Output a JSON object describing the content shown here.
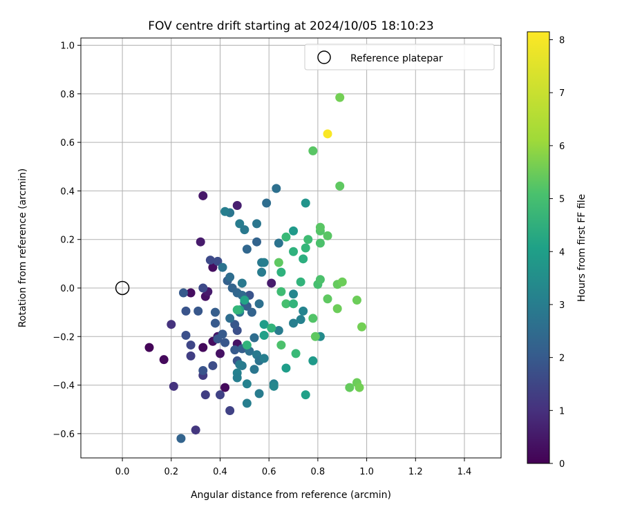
{
  "chart_data": {
    "type": "scatter",
    "title": "FOV centre drift starting at 2024/10/05 18:10:23",
    "xlabel": "Angular distance from reference (arcmin)",
    "ylabel": "Rotation from reference (arcmin)",
    "xlim": [
      -0.17,
      1.55
    ],
    "ylim": [
      -0.7,
      1.03
    ],
    "xticks": [
      0.0,
      0.2,
      0.4,
      0.6,
      0.8,
      1.0,
      1.2,
      1.4
    ],
    "xtick_labels": [
      "0.0",
      "0.2",
      "0.4",
      "0.6",
      "0.8",
      "1.0",
      "1.2",
      "1.4"
    ],
    "yticks": [
      -0.6,
      -0.4,
      -0.2,
      0.0,
      0.2,
      0.4,
      0.6,
      0.8,
      1.0
    ],
    "ytick_labels": [
      "−0.6",
      "−0.4",
      "−0.2",
      "0.0",
      "0.2",
      "0.4",
      "0.6",
      "0.8",
      "1.0"
    ],
    "grid": true,
    "legend": {
      "position": "top-right",
      "entries": [
        "Reference platepar"
      ]
    },
    "reference_point": {
      "x": 0.0,
      "y": 0.0
    },
    "colorbar": {
      "label": "Hours from first FF file",
      "colormap": "viridis",
      "min": 0,
      "max": 8.15,
      "ticks": [
        0,
        1,
        2,
        3,
        4,
        5,
        6,
        7,
        8
      ],
      "tick_labels": [
        "0",
        "1",
        "2",
        "3",
        "4",
        "5",
        "6",
        "7",
        "8"
      ]
    },
    "series": [
      {
        "color_value_label": "Hours from first FF file",
        "points": [
          {
            "x": 0.11,
            "y": -0.245,
            "c": 0.1
          },
          {
            "x": 0.17,
            "y": -0.295,
            "c": 0.2
          },
          {
            "x": 0.28,
            "y": -0.02,
            "c": 0.3
          },
          {
            "x": 0.33,
            "y": -0.245,
            "c": 0.2
          },
          {
            "x": 0.34,
            "y": -0.035,
            "c": 0.4
          },
          {
            "x": 0.35,
            "y": -0.015,
            "c": 0.6
          },
          {
            "x": 0.33,
            "y": 0.38,
            "c": 0.5
          },
          {
            "x": 0.32,
            "y": 0.19,
            "c": 0.6
          },
          {
            "x": 0.37,
            "y": 0.085,
            "c": 0.3
          },
          {
            "x": 0.37,
            "y": -0.22,
            "c": 0.3
          },
          {
            "x": 0.39,
            "y": -0.2,
            "c": 0.5
          },
          {
            "x": 0.4,
            "y": -0.27,
            "c": 0.4
          },
          {
            "x": 0.42,
            "y": -0.41,
            "c": 0.2
          },
          {
            "x": 0.47,
            "y": 0.34,
            "c": 0.7
          },
          {
            "x": 0.47,
            "y": -0.23,
            "c": 0.4
          },
          {
            "x": 0.61,
            "y": 0.02,
            "c": 0.6
          },
          {
            "x": 0.2,
            "y": -0.15,
            "c": 1.2
          },
          {
            "x": 0.21,
            "y": -0.405,
            "c": 1.2
          },
          {
            "x": 0.3,
            "y": -0.585,
            "c": 1.3
          },
          {
            "x": 0.28,
            "y": -0.28,
            "c": 1.5
          },
          {
            "x": 0.28,
            "y": -0.235,
            "c": 1.7
          },
          {
            "x": 0.33,
            "y": -0.36,
            "c": 1.4
          },
          {
            "x": 0.34,
            "y": -0.44,
            "c": 1.5
          },
          {
            "x": 0.4,
            "y": -0.44,
            "c": 1.6
          },
          {
            "x": 0.44,
            "y": -0.505,
            "c": 1.6
          },
          {
            "x": 0.37,
            "y": -0.32,
            "c": 1.9
          },
          {
            "x": 0.33,
            "y": -0.34,
            "c": 2.1
          },
          {
            "x": 0.36,
            "y": 0.115,
            "c": 1.8
          },
          {
            "x": 0.39,
            "y": 0.11,
            "c": 1.9
          },
          {
            "x": 0.33,
            "y": 0.0,
            "c": 1.8
          },
          {
            "x": 0.26,
            "y": -0.095,
            "c": 2.1
          },
          {
            "x": 0.26,
            "y": -0.195,
            "c": 2.0
          },
          {
            "x": 0.31,
            "y": -0.095,
            "c": 2.2
          },
          {
            "x": 0.25,
            "y": -0.02,
            "c": 2.3
          },
          {
            "x": 0.24,
            "y": -0.62,
            "c": 2.6
          },
          {
            "x": 0.38,
            "y": -0.145,
            "c": 2.3
          },
          {
            "x": 0.38,
            "y": -0.1,
            "c": 2.4
          },
          {
            "x": 0.39,
            "y": -0.21,
            "c": 2.2
          },
          {
            "x": 0.41,
            "y": -0.19,
            "c": 2.3
          },
          {
            "x": 0.42,
            "y": -0.225,
            "c": 2.2
          },
          {
            "x": 0.47,
            "y": -0.175,
            "c": 2.0
          },
          {
            "x": 0.46,
            "y": -0.15,
            "c": 2.2
          },
          {
            "x": 0.46,
            "y": -0.255,
            "c": 2.3
          },
          {
            "x": 0.47,
            "y": -0.3,
            "c": 2.1
          },
          {
            "x": 0.49,
            "y": -0.25,
            "c": 2.4
          },
          {
            "x": 0.5,
            "y": -0.06,
            "c": 2.2
          },
          {
            "x": 0.51,
            "y": -0.075,
            "c": 2.4
          },
          {
            "x": 0.52,
            "y": -0.03,
            "c": 2.1
          },
          {
            "x": 0.43,
            "y": 0.03,
            "c": 2.5
          },
          {
            "x": 0.45,
            "y": 0.0,
            "c": 2.6
          },
          {
            "x": 0.47,
            "y": -0.02,
            "c": 2.7
          },
          {
            "x": 0.49,
            "y": -0.03,
            "c": 2.8
          },
          {
            "x": 0.53,
            "y": -0.1,
            "c": 2.6
          },
          {
            "x": 0.44,
            "y": -0.125,
            "c": 2.9
          },
          {
            "x": 0.48,
            "y": -0.1,
            "c": 3.0
          },
          {
            "x": 0.51,
            "y": 0.16,
            "c": 2.7
          },
          {
            "x": 0.55,
            "y": 0.19,
            "c": 2.6
          },
          {
            "x": 0.44,
            "y": 0.045,
            "c": 2.9
          },
          {
            "x": 0.41,
            "y": 0.085,
            "c": 3.1
          },
          {
            "x": 0.49,
            "y": 0.02,
            "c": 3.3
          },
          {
            "x": 0.44,
            "y": 0.31,
            "c": 3.2
          },
          {
            "x": 0.42,
            "y": 0.315,
            "c": 3.5
          },
          {
            "x": 0.48,
            "y": 0.265,
            "c": 3.4
          },
          {
            "x": 0.5,
            "y": 0.24,
            "c": 3.3
          },
          {
            "x": 0.55,
            "y": 0.265,
            "c": 3.2
          },
          {
            "x": 0.59,
            "y": 0.35,
            "c": 2.9
          },
          {
            "x": 0.63,
            "y": 0.41,
            "c": 3.0
          },
          {
            "x": 0.64,
            "y": 0.185,
            "c": 3.1
          },
          {
            "x": 0.57,
            "y": 0.105,
            "c": 3.3
          },
          {
            "x": 0.58,
            "y": 0.105,
            "c": 3.5
          },
          {
            "x": 0.57,
            "y": 0.065,
            "c": 3.4
          },
          {
            "x": 0.54,
            "y": -0.205,
            "c": 2.9
          },
          {
            "x": 0.56,
            "y": -0.065,
            "c": 3.0
          },
          {
            "x": 0.52,
            "y": -0.26,
            "c": 3.0
          },
          {
            "x": 0.55,
            "y": -0.275,
            "c": 3.3
          },
          {
            "x": 0.56,
            "y": -0.3,
            "c": 3.1
          },
          {
            "x": 0.54,
            "y": -0.335,
            "c": 3.2
          },
          {
            "x": 0.49,
            "y": -0.32,
            "c": 3.3
          },
          {
            "x": 0.48,
            "y": -0.315,
            "c": 3.4
          },
          {
            "x": 0.47,
            "y": -0.35,
            "c": 3.6
          },
          {
            "x": 0.47,
            "y": -0.37,
            "c": 3.5
          },
          {
            "x": 0.51,
            "y": -0.395,
            "c": 3.6
          },
          {
            "x": 0.51,
            "y": -0.475,
            "c": 3.5
          },
          {
            "x": 0.56,
            "y": -0.435,
            "c": 3.4
          },
          {
            "x": 0.58,
            "y": -0.29,
            "c": 3.5
          },
          {
            "x": 0.62,
            "y": -0.395,
            "c": 3.6
          },
          {
            "x": 0.62,
            "y": -0.405,
            "c": 3.8
          },
          {
            "x": 0.64,
            "y": -0.175,
            "c": 3.4
          },
          {
            "x": 0.7,
            "y": -0.145,
            "c": 3.5
          },
          {
            "x": 0.73,
            "y": -0.13,
            "c": 3.6
          },
          {
            "x": 0.74,
            "y": -0.095,
            "c": 3.7
          },
          {
            "x": 0.7,
            "y": -0.025,
            "c": 3.8
          },
          {
            "x": 0.81,
            "y": -0.2,
            "c": 3.9
          },
          {
            "x": 0.75,
            "y": 0.35,
            "c": 4.2
          },
          {
            "x": 0.7,
            "y": 0.235,
            "c": 4.4
          },
          {
            "x": 0.58,
            "y": -0.195,
            "c": 4.6
          },
          {
            "x": 0.5,
            "y": -0.05,
            "c": 4.7
          },
          {
            "x": 0.48,
            "y": -0.09,
            "c": 4.9
          },
          {
            "x": 0.58,
            "y": -0.15,
            "c": 4.5
          },
          {
            "x": 0.61,
            "y": -0.165,
            "c": 5.3
          },
          {
            "x": 0.67,
            "y": -0.33,
            "c": 4.5
          },
          {
            "x": 0.75,
            "y": -0.44,
            "c": 4.6
          },
          {
            "x": 0.78,
            "y": -0.3,
            "c": 4.4
          },
          {
            "x": 0.51,
            "y": -0.235,
            "c": 5.3
          },
          {
            "x": 0.47,
            "y": -0.09,
            "c": 5.4
          },
          {
            "x": 0.7,
            "y": 0.15,
            "c": 5.2
          },
          {
            "x": 0.73,
            "y": 0.025,
            "c": 5.3
          },
          {
            "x": 0.74,
            "y": 0.12,
            "c": 5.1
          },
          {
            "x": 0.75,
            "y": 0.165,
            "c": 5.4
          },
          {
            "x": 0.76,
            "y": 0.2,
            "c": 5.6
          },
          {
            "x": 0.67,
            "y": 0.21,
            "c": 5.5
          },
          {
            "x": 0.65,
            "y": 0.065,
            "c": 5.2
          },
          {
            "x": 0.65,
            "y": -0.015,
            "c": 5.6
          },
          {
            "x": 0.67,
            "y": -0.065,
            "c": 5.7
          },
          {
            "x": 0.7,
            "y": -0.065,
            "c": 5.3
          },
          {
            "x": 0.71,
            "y": -0.27,
            "c": 5.5
          },
          {
            "x": 0.65,
            "y": -0.235,
            "c": 5.8
          },
          {
            "x": 0.64,
            "y": 0.105,
            "c": 6.1
          },
          {
            "x": 0.8,
            "y": 0.015,
            "c": 5.7
          },
          {
            "x": 0.81,
            "y": 0.035,
            "c": 5.8
          },
          {
            "x": 0.81,
            "y": 0.185,
            "c": 5.8
          },
          {
            "x": 0.81,
            "y": 0.235,
            "c": 5.9
          },
          {
            "x": 0.81,
            "y": 0.25,
            "c": 6.0
          },
          {
            "x": 0.84,
            "y": 0.215,
            "c": 6.0
          },
          {
            "x": 0.78,
            "y": -0.125,
            "c": 5.9
          },
          {
            "x": 0.79,
            "y": -0.2,
            "c": 6.1
          },
          {
            "x": 0.84,
            "y": -0.045,
            "c": 6.1
          },
          {
            "x": 0.88,
            "y": 0.015,
            "c": 6.2
          },
          {
            "x": 0.9,
            "y": 0.025,
            "c": 6.3
          },
          {
            "x": 0.88,
            "y": -0.085,
            "c": 6.3
          },
          {
            "x": 0.96,
            "y": -0.05,
            "c": 6.3
          },
          {
            "x": 0.98,
            "y": -0.16,
            "c": 6.4
          },
          {
            "x": 0.93,
            "y": -0.41,
            "c": 6.2
          },
          {
            "x": 0.96,
            "y": -0.39,
            "c": 6.3
          },
          {
            "x": 0.97,
            "y": -0.41,
            "c": 6.4
          },
          {
            "x": 0.78,
            "y": 0.565,
            "c": 6.0
          },
          {
            "x": 0.89,
            "y": 0.42,
            "c": 6.1
          },
          {
            "x": 0.89,
            "y": 0.785,
            "c": 6.4
          },
          {
            "x": 0.84,
            "y": 0.635,
            "c": 8.1
          }
        ]
      }
    ]
  }
}
